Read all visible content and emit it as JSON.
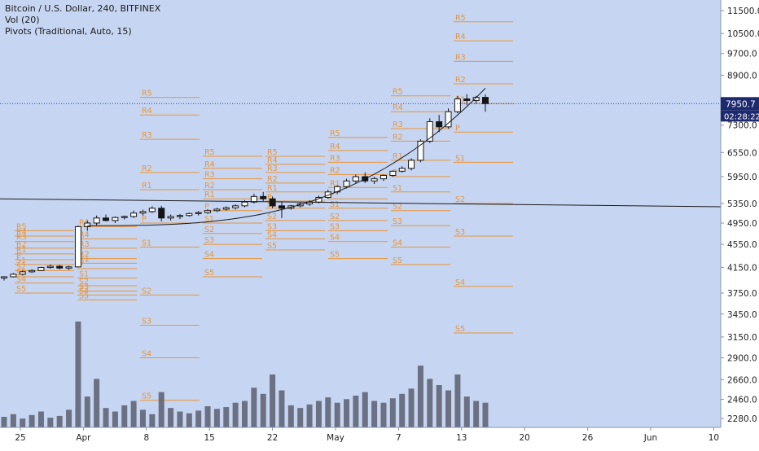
{
  "legend": {
    "line1": "Bitcoin / U.S. Dollar, 240, BITFINEX",
    "line2": "Vol (20)",
    "line3": "Pivots (Traditional, Auto, 15)"
  },
  "colors": {
    "background": "#c6d6f2",
    "pivot": "#e8943a",
    "candle": "#141414",
    "volume": "#5a5e6e",
    "price_line": "#2a34c8",
    "price_badge": "#1e2a6e",
    "axis_text": "#222222"
  },
  "chart_data": {
    "type": "candlestick",
    "symbol": "Bitcoin / U.S. Dollar",
    "interval": "240",
    "exchange": "BITFINEX",
    "price_axis": {
      "ticks": [
        "11500.0",
        "10500.0",
        "9700.0",
        "8900.0",
        "7300.0",
        "6550.0",
        "5950.0",
        "5350.0",
        "4950.0",
        "4550.0",
        "4150.0",
        "3750.0",
        "3450.0",
        "3150.0",
        "2900.0",
        "2660.0",
        "2460.0",
        "2280.0"
      ],
      "tick_values": [
        11500,
        10500,
        9700,
        8900,
        7300,
        6550,
        5950,
        5350,
        4950,
        4550,
        4150,
        3750,
        3450,
        3150,
        2900,
        2660,
        2460,
        2280
      ],
      "scale": "log"
    },
    "time_axis": {
      "ticks": [
        "25",
        "Apr",
        "8",
        "15",
        "22",
        "May",
        "7",
        "13",
        "20",
        "26",
        "Jun",
        "10"
      ]
    },
    "last_price": "7950.7",
    "countdown": "02:28:22",
    "last_value": 7950.7,
    "candles": [
      [
        3980,
        4010,
        3940,
        4000
      ],
      [
        4000,
        4060,
        3990,
        4040
      ],
      [
        4040,
        4100,
        4020,
        4080
      ],
      [
        4080,
        4120,
        4060,
        4100
      ],
      [
        4100,
        4160,
        4090,
        4150
      ],
      [
        4150,
        4200,
        4130,
        4170
      ],
      [
        4170,
        4190,
        4120,
        4140
      ],
      [
        4140,
        4180,
        4110,
        4160
      ],
      [
        4160,
        4900,
        4150,
        4880
      ],
      [
        4880,
        5000,
        4800,
        4950
      ],
      [
        4950,
        5100,
        4900,
        5050
      ],
      [
        5050,
        5120,
        4980,
        5000
      ],
      [
        5000,
        5080,
        4950,
        5060
      ],
      [
        5060,
        5100,
        5020,
        5080
      ],
      [
        5080,
        5200,
        5050,
        5150
      ],
      [
        5150,
        5220,
        5100,
        5180
      ],
      [
        5180,
        5290,
        5150,
        5250
      ],
      [
        5250,
        5300,
        4980,
        5050
      ],
      [
        5050,
        5120,
        5000,
        5080
      ],
      [
        5080,
        5130,
        5030,
        5100
      ],
      [
        5100,
        5160,
        5080,
        5140
      ],
      [
        5140,
        5190,
        5100,
        5160
      ],
      [
        5160,
        5230,
        5130,
        5200
      ],
      [
        5200,
        5260,
        5170,
        5230
      ],
      [
        5230,
        5290,
        5200,
        5260
      ],
      [
        5260,
        5330,
        5220,
        5300
      ],
      [
        5300,
        5420,
        5270,
        5380
      ],
      [
        5380,
        5560,
        5350,
        5500
      ],
      [
        5500,
        5600,
        5400,
        5450
      ],
      [
        5450,
        5500,
        5250,
        5300
      ],
      [
        5300,
        5380,
        5050,
        5250
      ],
      [
        5250,
        5320,
        5220,
        5300
      ],
      [
        5300,
        5370,
        5270,
        5340
      ],
      [
        5340,
        5420,
        5300,
        5380
      ],
      [
        5380,
        5520,
        5350,
        5480
      ],
      [
        5480,
        5650,
        5450,
        5600
      ],
      [
        5600,
        5750,
        5550,
        5720
      ],
      [
        5720,
        5900,
        5680,
        5850
      ],
      [
        5850,
        6000,
        5800,
        5950
      ],
      [
        5950,
        6050,
        5800,
        5850
      ],
      [
        5850,
        5950,
        5780,
        5900
      ],
      [
        5900,
        6000,
        5850,
        5980
      ],
      [
        5980,
        6100,
        5950,
        6080
      ],
      [
        6080,
        6200,
        6050,
        6150
      ],
      [
        6150,
        6400,
        6100,
        6350
      ],
      [
        6350,
        6900,
        6300,
        6850
      ],
      [
        6850,
        7500,
        6800,
        7400
      ],
      [
        7400,
        7600,
        7100,
        7250
      ],
      [
        7250,
        7800,
        7200,
        7700
      ],
      [
        7700,
        8200,
        7650,
        8100
      ],
      [
        8100,
        8250,
        7900,
        8050
      ],
      [
        8050,
        8200,
        7950,
        8150
      ],
      [
        8150,
        8250,
        7700,
        7950
      ]
    ],
    "volume": [
      12,
      15,
      10,
      14,
      18,
      11,
      13,
      20,
      120,
      35,
      55,
      22,
      18,
      25,
      30,
      20,
      15,
      40,
      22,
      18,
      16,
      19,
      24,
      21,
      23,
      28,
      30,
      45,
      38,
      60,
      42,
      25,
      22,
      26,
      30,
      34,
      28,
      32,
      36,
      40,
      30,
      28,
      33,
      38,
      44,
      70,
      55,
      48,
      42,
      60,
      35,
      30,
      28
    ],
    "curve_value_range": [
      4900,
      8450
    ],
    "trendline": [
      5450,
      5280
    ],
    "pivot_sets": [
      {
        "levels": {
          "R5": 4800,
          "R4": 4700,
          "R3": 4600,
          "R2": 4480,
          "R1": 4380,
          "P": 4280,
          "S1": 4200,
          "S2": 4100,
          "S3": 4000,
          "S4": 3900,
          "S5": 3750
        }
      },
      {
        "levels": {
          "R5": 4880,
          "R4": 4650,
          "R3": 4480,
          "R2": 4300,
          "R1": 4220,
          "P": 4130,
          "S1": 3980,
          "S2": 3860,
          "S3": 3780,
          "S4": 3720,
          "S5": 3650
        }
      },
      {
        "levels": {
          "R5": 8150,
          "R4": 7600,
          "R3": 6900,
          "R2": 6050,
          "R1": 5650,
          "P": 4950,
          "S1": 4500,
          "S2": 3720,
          "S3": 3300,
          "S4": 2900,
          "S5": 2450
        }
      },
      {
        "levels": {
          "R5": 6450,
          "R4": 6150,
          "R3": 5900,
          "R2": 5650,
          "R1": 5450,
          "P": 5200,
          "S1": 4950,
          "S2": 4750,
          "S3": 4550,
          "S4": 4300,
          "S5": 4000
        }
      },
      {
        "levels": {
          "R5": 6450,
          "R4": 6250,
          "R3": 6050,
          "R2": 5800,
          "R1": 5600,
          "P": 5400,
          "S1": 5250,
          "S2": 5000,
          "S3": 4800,
          "S4": 4650,
          "S5": 4450
        }
      },
      {
        "levels": {
          "R5": 6950,
          "R4": 6600,
          "R3": 6300,
          "R2": 6000,
          "R1": 5700,
          "P": 5450,
          "S1": 5250,
          "S2": 5000,
          "S3": 4800,
          "S4": 4600,
          "S5": 4300
        }
      },
      {
        "levels": {
          "R5": 8200,
          "R4": 7700,
          "R3": 7200,
          "R2": 6850,
          "R1": 6350,
          "P": 5950,
          "S1": 5600,
          "S2": 5200,
          "S3": 4900,
          "S4": 4500,
          "S5": 4200
        }
      },
      {
        "levels": {
          "R5": 11000,
          "R4": 10200,
          "R3": 9400,
          "R2": 8600,
          "R1": 7950,
          "P": 7100,
          "S1": 6300,
          "S2": 5350,
          "S3": 4700,
          "S4": 3850,
          "S5": 3200
        }
      }
    ]
  }
}
